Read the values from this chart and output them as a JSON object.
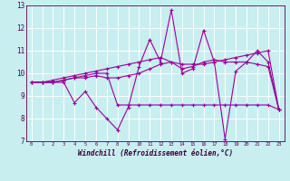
{
  "xlabel": "Windchill (Refroidissement éolien,°C)",
  "xlim": [
    -0.5,
    23.5
  ],
  "ylim": [
    7,
    13
  ],
  "yticks": [
    7,
    8,
    9,
    10,
    11,
    12,
    13
  ],
  "xticks": [
    0,
    1,
    2,
    3,
    4,
    5,
    6,
    7,
    8,
    9,
    10,
    11,
    12,
    13,
    14,
    15,
    16,
    17,
    18,
    19,
    20,
    21,
    22,
    23
  ],
  "background_color": "#c8eef0",
  "grid_color": "#ffffff",
  "line_color": "#990099",
  "series": [
    [
      9.6,
      9.6,
      9.6,
      9.6,
      8.7,
      9.2,
      8.5,
      8.0,
      7.5,
      8.5,
      10.3,
      11.5,
      10.5,
      12.8,
      10.0,
      10.2,
      11.9,
      10.5,
      7.1,
      10.1,
      10.5,
      11.0,
      10.5,
      8.4
    ],
    [
      9.6,
      9.6,
      9.6,
      9.7,
      9.8,
      9.8,
      9.9,
      9.8,
      9.8,
      9.9,
      10.0,
      10.2,
      10.4,
      10.5,
      10.2,
      10.3,
      10.5,
      10.6,
      10.5,
      10.5,
      10.5,
      10.4,
      10.3,
      8.4
    ],
    [
      9.6,
      9.6,
      9.6,
      9.7,
      9.8,
      9.9,
      10.0,
      10.0,
      8.6,
      8.6,
      8.6,
      8.6,
      8.6,
      8.6,
      8.6,
      8.6,
      8.6,
      8.6,
      8.6,
      8.6,
      8.6,
      8.6,
      8.6,
      8.4
    ],
    [
      9.6,
      9.6,
      9.7,
      9.8,
      9.9,
      10.0,
      10.1,
      10.2,
      10.3,
      10.4,
      10.5,
      10.6,
      10.7,
      10.5,
      10.4,
      10.4,
      10.4,
      10.5,
      10.6,
      10.7,
      10.8,
      10.9,
      11.0,
      8.4
    ]
  ]
}
